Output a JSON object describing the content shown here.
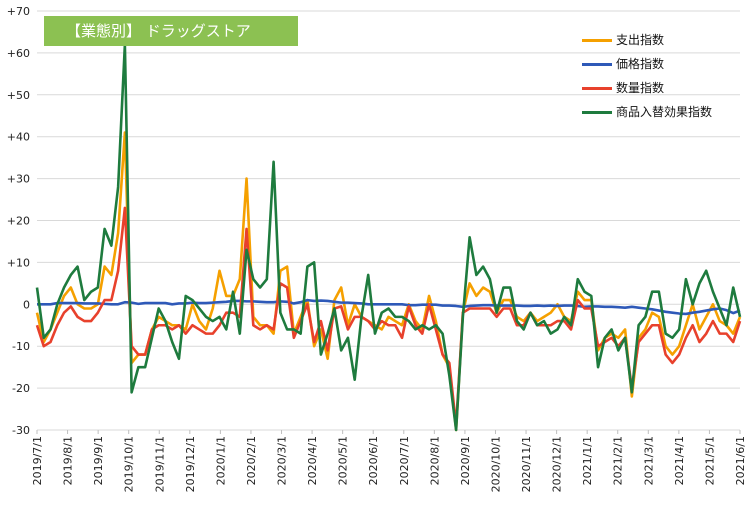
{
  "title": "【業態別】 ドラッグストア",
  "chart_data": {
    "type": "line",
    "ylim": [
      -30,
      70
    ],
    "yticks": [
      -30,
      -20,
      -10,
      0,
      10,
      20,
      30,
      40,
      50,
      60,
      70
    ],
    "ytick_labels": [
      "-30",
      "-20",
      "-10",
      "0",
      "+10",
      "+20",
      "+30",
      "+40",
      "+50",
      "+60",
      "+70"
    ],
    "x_labels": [
      "2019/7/1",
      "2019/8/1",
      "2019/9/1",
      "2019/10/1",
      "2019/11/1",
      "2019/12/1",
      "2020/1/1",
      "2020/2/1",
      "2020/3/1",
      "2020/4/1",
      "2020/5/1",
      "2020/6/1",
      "2020/7/1",
      "2020/8/1",
      "2020/9/1",
      "2020/10/1",
      "2020/11/1",
      "2020/12/1",
      "2021/1/1",
      "2021/2/1",
      "2021/3/1",
      "2021/4/1",
      "2021/5/1",
      "2021/6/1"
    ],
    "grid": true,
    "legend_position": "top-right",
    "series": [
      {
        "name": "支出指数",
        "color": "#f5a000",
        "values": [
          -2,
          -9,
          -6,
          -2,
          2,
          4,
          0,
          -1,
          -1,
          0,
          9,
          7,
          17,
          41,
          -14,
          -12,
          -12,
          -6,
          -3,
          -4,
          -5,
          -5,
          -6,
          0,
          -4,
          -6,
          -1,
          8,
          2,
          2,
          6,
          30,
          -3,
          -5,
          -5,
          -7,
          8,
          9,
          -7,
          -3,
          1,
          -10,
          -6,
          -13,
          1,
          4,
          -5,
          0,
          -3,
          -4,
          -5,
          -6,
          -3,
          -4,
          -5,
          0,
          -4,
          -6,
          2,
          -4,
          -12,
          -15,
          -30,
          -2,
          5,
          2,
          4,
          3,
          -2,
          1,
          1,
          -3,
          -4,
          -2,
          -4,
          -3,
          -2,
          0,
          -3,
          -4,
          3,
          1,
          1,
          -11,
          -8,
          -7,
          -8,
          -6,
          -22,
          -8,
          -6,
          -2,
          -3,
          -10,
          -12,
          -10,
          -5,
          0,
          -6,
          -3,
          0,
          -4,
          -5,
          -7,
          -3
        ]
      },
      {
        "name": "価格指数",
        "color": "#2e59b8",
        "values": [
          0,
          0,
          0,
          0.3,
          0.3,
          0.3,
          0.3,
          0.2,
          0.2,
          0.2,
          0.1,
          0,
          0,
          0.5,
          0.4,
          0.1,
          0.3,
          0.3,
          0.3,
          0.3,
          0,
          0.2,
          0.2,
          0.4,
          0.3,
          0.3,
          0.4,
          0.5,
          0.6,
          0.8,
          0.8,
          0.7,
          0.7,
          0.6,
          0.5,
          0.5,
          0.7,
          0.6,
          0.2,
          0.5,
          1,
          0.8,
          0.9,
          0.8,
          0.6,
          0.4,
          0.4,
          0.3,
          0.2,
          0,
          0,
          0,
          0,
          0,
          0,
          -0.2,
          -0.2,
          -0.1,
          -0.1,
          -0.1,
          -0.3,
          -0.3,
          -0.4,
          -0.6,
          -0.4,
          -0.3,
          -0.2,
          -0.2,
          -0.3,
          -0.3,
          -0.3,
          -0.3,
          -0.4,
          -0.4,
          -0.3,
          -0.4,
          -0.3,
          -0.4,
          -0.3,
          -0.3,
          -0.4,
          -0.6,
          -0.5,
          -0.5,
          -0.6,
          -0.6,
          -0.7,
          -0.8,
          -0.6,
          -0.8,
          -1,
          -1.2,
          -1.5,
          -1.8,
          -2,
          -2.2,
          -2.3,
          -2,
          -1.8,
          -1.5,
          -1.2,
          -1,
          -1.4,
          -2.1,
          -1.5
        ]
      },
      {
        "name": "数量指数",
        "color": "#e8412c",
        "values": [
          -5,
          -10,
          -9,
          -5,
          -2,
          -0.5,
          -3,
          -4,
          -4,
          -2,
          1,
          1,
          8,
          23,
          -10,
          -12,
          -12,
          -6,
          -5,
          -5,
          -6,
          -5,
          -7,
          -5,
          -6,
          -7,
          -7,
          -5,
          -2,
          -2,
          -3,
          18,
          -5,
          -6,
          -5,
          -6,
          5,
          4,
          -8,
          -4,
          0,
          -9,
          -4,
          -11,
          -1,
          -0.5,
          -6,
          -3,
          -3,
          -4,
          -6,
          -4,
          -5,
          -5,
          -8,
          -0.5,
          -5,
          -7,
          0,
          -6,
          -12,
          -14,
          -29,
          -2,
          -1,
          -1,
          -1,
          -1,
          -3,
          -1,
          -1,
          -5,
          -5,
          -2,
          -5,
          -5,
          -5,
          -4,
          -4,
          -6,
          1,
          -1,
          -1,
          -10,
          -9,
          -8,
          -10,
          -8,
          -20,
          -9,
          -7,
          -5,
          -5,
          -12,
          -14,
          -12,
          -8,
          -5,
          -9,
          -7,
          -4,
          -7,
          -7,
          -9,
          -4
        ]
      },
      {
        "name": "商品入替効果指数",
        "color": "#1e7b3e",
        "values": [
          4,
          -8,
          -6,
          0,
          4,
          7,
          9,
          1,
          3,
          4,
          18,
          14,
          28,
          62,
          -21,
          -15,
          -15,
          -8,
          -1,
          -4,
          -9,
          -13,
          2,
          1,
          -1,
          -3,
          -4,
          -3,
          -6,
          3,
          -7,
          13,
          6,
          4,
          6,
          34,
          -2,
          -6,
          -6,
          -7,
          9,
          10,
          -12,
          -7,
          -1,
          -11,
          -8,
          -18,
          -3,
          7,
          -7,
          -2,
          -1,
          -3,
          -3,
          -4,
          -6,
          -5,
          -6,
          -5,
          -7,
          -17,
          -30,
          -3,
          16,
          7,
          9,
          6,
          -2,
          4,
          4,
          -4,
          -6,
          -2,
          -5,
          -4,
          -7,
          -6,
          -3,
          -5,
          6,
          3,
          2,
          -15,
          -8,
          -6,
          -11,
          -8,
          -21,
          -5,
          -3,
          3,
          3,
          -7,
          -8,
          -6,
          6,
          0,
          5,
          8,
          3,
          -1,
          -5,
          4,
          -3
        ]
      }
    ]
  }
}
